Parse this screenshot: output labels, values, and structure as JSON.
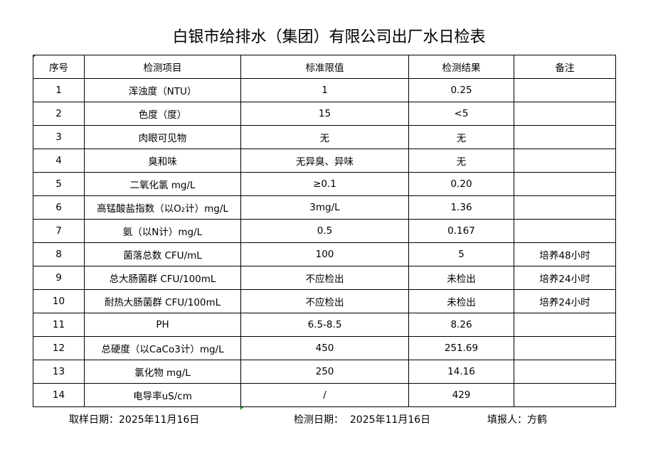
{
  "title": "白银市给排水（集团）有限公司出厂水日检表",
  "headers": [
    "序号",
    "检测项目",
    "标准限值",
    "检测结果",
    "备注"
  ],
  "rows": [
    [
      "1",
      "浑浊度（NTU）",
      "1",
      "0.25",
      ""
    ],
    [
      "2",
      "色度（度）",
      "15",
      "<5",
      ""
    ],
    [
      "3",
      "肉眼可见物",
      "无",
      "无",
      ""
    ],
    [
      "4",
      "臭和味",
      "无异臭、异味",
      "无",
      ""
    ],
    [
      "5",
      "二氧化氯 mg/L",
      "≥0.1",
      "0.20",
      ""
    ],
    [
      "6",
      "高锰酸盐指数（以O₂计）mg/L",
      "3mg/L",
      "1.36",
      ""
    ],
    [
      "7",
      "氨（以N计）mg/L",
      "0.5",
      "0.167",
      ""
    ],
    [
      "8",
      "菌落总数 CFU/mL",
      "100",
      "5",
      "培养48小时"
    ],
    [
      "9",
      "总大肠菌群 CFU/100mL",
      "不应检出",
      "未检出",
      "培养24小时"
    ],
    [
      "10",
      "耐热大肠菌群 CFU/100mL",
      "不应检出",
      "未检出",
      "培养24小时"
    ],
    [
      "11",
      "PH",
      "6.5-8.5",
      "8.26",
      ""
    ],
    [
      "12",
      "总硬度（以CaCo3计）mg/L",
      "450",
      "251.69",
      ""
    ],
    [
      "13",
      "氯化物 mg/L",
      "250",
      "14.16",
      ""
    ],
    [
      "14",
      "电导率uS/cm",
      "/",
      "429",
      ""
    ]
  ],
  "footer": {
    "sampling_date": "取样日期：2025年11月16日",
    "test_date": "检测日期：  2025年11月16日",
    "reporter": "填报人：方鹤"
  }
}
